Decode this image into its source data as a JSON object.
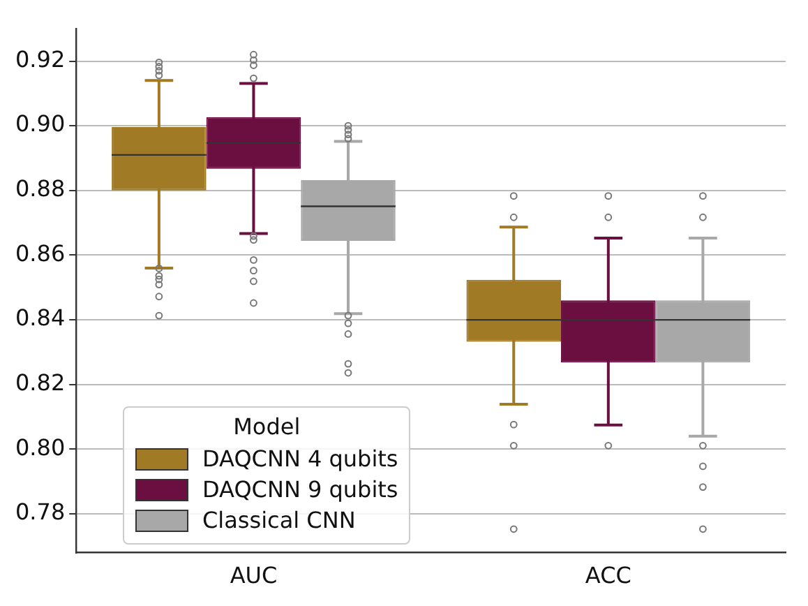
{
  "chart_data": {
    "type": "box",
    "categories": [
      "AUC",
      "ACC"
    ],
    "ylim": [
      0.768,
      0.93
    ],
    "yticks": [
      {
        "value": 0.78,
        "label": "0.78"
      },
      {
        "value": 0.8,
        "label": "0.80"
      },
      {
        "value": 0.82,
        "label": "0.82"
      },
      {
        "value": 0.84,
        "label": "0.84"
      },
      {
        "value": 0.86,
        "label": "0.86"
      },
      {
        "value": 0.88,
        "label": "0.88"
      },
      {
        "value": 0.9,
        "label": "0.90"
      },
      {
        "value": 0.92,
        "label": "0.92"
      }
    ],
    "grid": "y",
    "legend": "bottom left",
    "legend_title": "Model",
    "series": [
      {
        "name": "DAQCNN 4 qubits",
        "color": "#a07a24",
        "boxes": [
          {
            "low": 0.856,
            "q1": 0.88,
            "median": 0.891,
            "q3": 0.8996,
            "high": 0.914,
            "outliers": [
              0.9196,
              0.9183,
              0.917,
              0.9156,
              0.8559,
              0.8536,
              0.8525,
              0.8509,
              0.8472,
              0.8413
            ]
          },
          {
            "low": 0.8139,
            "q1": 0.8332,
            "median": 0.84,
            "q3": 0.8524,
            "high": 0.8687,
            "outliers": [
              0.8783,
              0.8717,
              0.8076,
              0.8011,
              0.7753
            ]
          }
        ]
      },
      {
        "name": "DAQCNN 9 qubits",
        "color": "#6a0f3f",
        "boxes": [
          {
            "low": 0.8667,
            "q1": 0.8867,
            "median": 0.8947,
            "q3": 0.9027,
            "high": 0.9131,
            "outliers": [
              0.922,
              0.9203,
              0.9187,
              0.9147,
              0.8659,
              0.8647,
              0.8585,
              0.8552,
              0.8519,
              0.8452
            ]
          },
          {
            "low": 0.8075,
            "q1": 0.8268,
            "median": 0.84,
            "q3": 0.846,
            "high": 0.8653,
            "outliers": [
              0.8783,
              0.8717,
              0.8011
            ]
          }
        ]
      },
      {
        "name": "Classical CNN",
        "color": "#a8a8a8",
        "boxes": [
          {
            "low": 0.8419,
            "q1": 0.8644,
            "median": 0.8751,
            "q3": 0.8832,
            "high": 0.8952,
            "outliers": [
              0.9,
              0.8987,
              0.8973,
              0.896,
              0.8413,
              0.8389,
              0.8356,
              0.8264,
              0.8236
            ]
          },
          {
            "low": 0.804,
            "q1": 0.8268,
            "median": 0.84,
            "q3": 0.846,
            "high": 0.8653,
            "outliers": [
              0.8783,
              0.8717,
              0.8011,
              0.7947,
              0.7883,
              0.7753
            ]
          }
        ]
      }
    ]
  }
}
